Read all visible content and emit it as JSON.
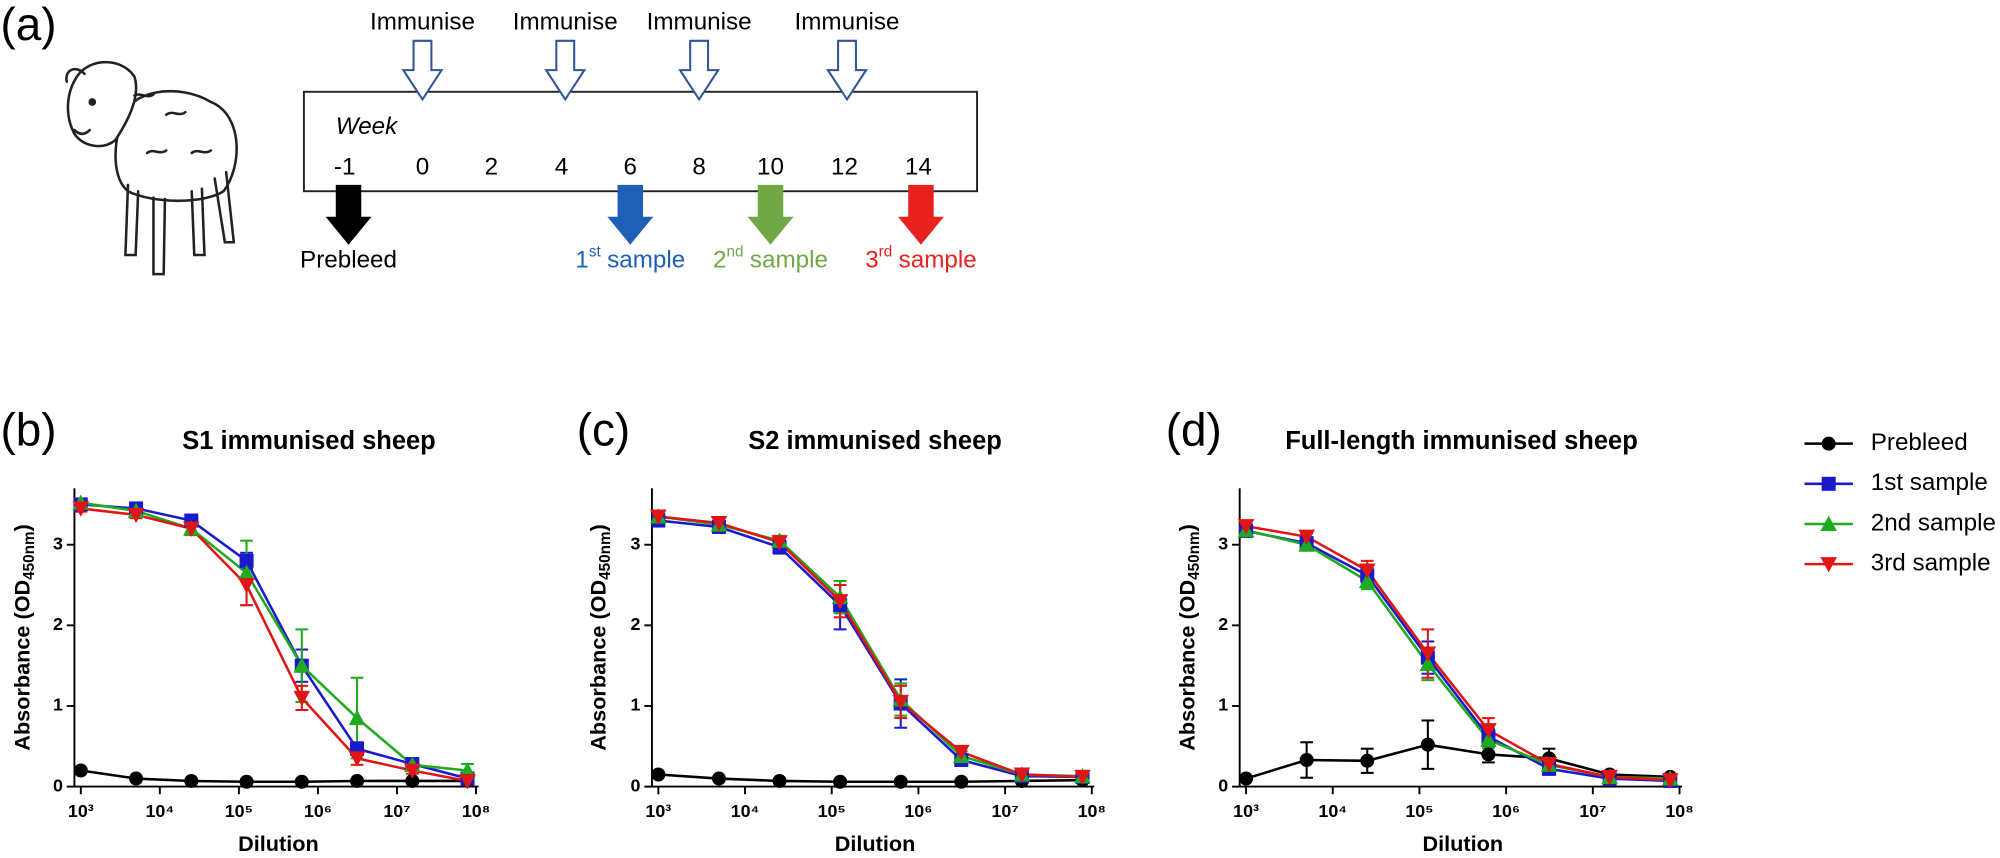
{
  "panel_a": {
    "panel_label": "(a)",
    "immunise": [
      "Immunise",
      "Immunise",
      "Immunise",
      "Immunise"
    ],
    "week_label": "Week",
    "weeks": [
      "-1",
      "0",
      "2",
      "4",
      "6",
      "8",
      "10",
      "12",
      "14"
    ],
    "samples": [
      {
        "label": "Prebleed",
        "color": "#000000"
      },
      {
        "ordinal": "1",
        "suffix": "st",
        "label": "sample",
        "color": "#1f5fb5"
      },
      {
        "ordinal": "2",
        "suffix": "nd",
        "label": "sample",
        "color": "#70a845"
      },
      {
        "ordinal": "3",
        "suffix": "rd",
        "label": "sample",
        "color": "#e8221e"
      }
    ]
  },
  "chart_data": [
    {
      "type": "line",
      "panel_label": "(b)",
      "title": "S1 immunised sheep",
      "xlabel": "Dilution",
      "ylabel": [
        "Absorbance (OD",
        "450nm",
        ")"
      ],
      "xscale": "log",
      "x": [
        1000,
        5000,
        25000,
        125000,
        625000,
        3125000,
        15625000,
        78125000
      ],
      "xlim": [
        1000,
        100000000
      ],
      "xticks": [
        {
          "value": 1000,
          "label": "10³"
        },
        {
          "value": 10000,
          "label": "10⁴"
        },
        {
          "value": 100000,
          "label": "10⁵"
        },
        {
          "value": 1000000,
          "label": "10⁶"
        },
        {
          "value": 10000000,
          "label": "10⁷"
        },
        {
          "value": 100000000,
          "label": "10⁸"
        }
      ],
      "ylim": [
        0,
        3.7
      ],
      "yticks": [
        0,
        1,
        2,
        3
      ],
      "legend": "right",
      "series": [
        {
          "name": "Prebleed",
          "color": "#000000",
          "marker": "circle",
          "values": [
            0.2,
            0.1,
            0.07,
            0.06,
            0.06,
            0.07,
            0.07,
            0.07
          ],
          "errors": [
            0.02,
            0.02,
            0.02,
            0.02,
            0.02,
            0.02,
            0.02,
            0.02
          ]
        },
        {
          "name": "1st sample",
          "color": "#1a1acc",
          "marker": "square",
          "values": [
            3.5,
            3.45,
            3.3,
            2.8,
            1.5,
            0.47,
            0.28,
            0.1
          ],
          "errors": [
            0.03,
            0.03,
            0.04,
            0.1,
            0.2,
            0.08,
            0.05,
            0.03
          ]
        },
        {
          "name": "2nd sample",
          "color": "#1faa1f",
          "marker": "triangle",
          "values": [
            3.52,
            3.42,
            3.2,
            2.65,
            1.5,
            0.85,
            0.27,
            0.2
          ],
          "errors": [
            0.05,
            0.04,
            0.08,
            0.4,
            0.45,
            0.5,
            0.04,
            0.08
          ]
        },
        {
          "name": "3rd sample",
          "color": "#e01515",
          "marker": "triangle-down",
          "values": [
            3.45,
            3.37,
            3.2,
            2.5,
            1.1,
            0.35,
            0.2,
            0.07
          ],
          "errors": [
            0.04,
            0.04,
            0.08,
            0.25,
            0.15,
            0.08,
            0.04,
            0.03
          ]
        }
      ]
    },
    {
      "type": "line",
      "panel_label": "(c)",
      "title": "S2 immunised sheep",
      "xlabel": "Dilution",
      "ylabel": [
        "Absorbance (OD",
        "450nm",
        ")"
      ],
      "xscale": "log",
      "x": [
        1000,
        5000,
        25000,
        125000,
        625000,
        3125000,
        15625000,
        78125000
      ],
      "xlim": [
        1000,
        100000000
      ],
      "xticks": [
        {
          "value": 1000,
          "label": "10³"
        },
        {
          "value": 10000,
          "label": "10⁴"
        },
        {
          "value": 100000,
          "label": "10⁵"
        },
        {
          "value": 1000000,
          "label": "10⁶"
        },
        {
          "value": 10000000,
          "label": "10⁷"
        },
        {
          "value": 100000000,
          "label": "10⁸"
        }
      ],
      "ylim": [
        0,
        3.7
      ],
      "yticks": [
        0,
        1,
        2,
        3
      ],
      "series": [
        {
          "color": "#000000",
          "marker": "circle",
          "values": [
            0.15,
            0.1,
            0.07,
            0.06,
            0.06,
            0.06,
            0.07,
            0.08
          ],
          "errors": [
            0.02,
            0.02,
            0.02,
            0.02,
            0.02,
            0.02,
            0.02,
            0.02
          ]
        },
        {
          "color": "#1a1acc",
          "marker": "square",
          "values": [
            3.3,
            3.22,
            2.97,
            2.25,
            1.03,
            0.33,
            0.13,
            0.12
          ],
          "errors": [
            0.05,
            0.05,
            0.08,
            0.3,
            0.3,
            0.06,
            0.03,
            0.03
          ]
        },
        {
          "color": "#1faa1f",
          "marker": "triangle",
          "values": [
            3.35,
            3.25,
            3.05,
            2.35,
            1.08,
            0.38,
            0.15,
            0.13
          ],
          "errors": [
            0.05,
            0.05,
            0.06,
            0.2,
            0.2,
            0.06,
            0.03,
            0.03
          ]
        },
        {
          "color": "#e01515",
          "marker": "triangle-down",
          "values": [
            3.35,
            3.27,
            3.03,
            2.3,
            1.05,
            0.43,
            0.15,
            0.12
          ],
          "errors": [
            0.05,
            0.05,
            0.06,
            0.2,
            0.2,
            0.06,
            0.03,
            0.03
          ]
        }
      ]
    },
    {
      "type": "line",
      "panel_label": "(d)",
      "title": "Full-length immunised sheep",
      "xlabel": "Dilution",
      "ylabel": [
        "Absorbance (OD",
        "450nm",
        ")"
      ],
      "xscale": "log",
      "x": [
        1000,
        5000,
        25000,
        125000,
        625000,
        3125000,
        15625000,
        78125000
      ],
      "xlim": [
        1000,
        100000000
      ],
      "xticks": [
        {
          "value": 1000,
          "label": "10³"
        },
        {
          "value": 10000,
          "label": "10⁴"
        },
        {
          "value": 100000,
          "label": "10⁵"
        },
        {
          "value": 1000000,
          "label": "10⁶"
        },
        {
          "value": 10000000,
          "label": "10⁷"
        },
        {
          "value": 100000000,
          "label": "10⁸"
        }
      ],
      "ylim": [
        0,
        3.7
      ],
      "yticks": [
        0,
        1,
        2,
        3
      ],
      "series": [
        {
          "color": "#000000",
          "marker": "circle",
          "values": [
            0.1,
            0.33,
            0.32,
            0.52,
            0.4,
            0.35,
            0.15,
            0.12
          ],
          "errors": [
            0.02,
            0.22,
            0.15,
            0.3,
            0.1,
            0.12,
            0.03,
            0.02
          ]
        },
        {
          "color": "#1a1acc",
          "marker": "square",
          "values": [
            3.17,
            3.02,
            2.62,
            1.6,
            0.62,
            0.22,
            0.1,
            0.07
          ],
          "errors": [
            0.04,
            0.04,
            0.1,
            0.2,
            0.1,
            0.05,
            0.03,
            0.02
          ]
        },
        {
          "color": "#1faa1f",
          "marker": "triangle",
          "values": [
            3.18,
            3.0,
            2.55,
            1.52,
            0.58,
            0.27,
            0.12,
            0.1
          ],
          "errors": [
            0.04,
            0.04,
            0.1,
            0.2,
            0.1,
            0.05,
            0.03,
            0.02
          ]
        },
        {
          "color": "#e01515",
          "marker": "triangle-down",
          "values": [
            3.23,
            3.1,
            2.68,
            1.65,
            0.7,
            0.28,
            0.12,
            0.08
          ],
          "errors": [
            0.04,
            0.04,
            0.12,
            0.3,
            0.15,
            0.05,
            0.03,
            0.02
          ]
        }
      ]
    }
  ]
}
